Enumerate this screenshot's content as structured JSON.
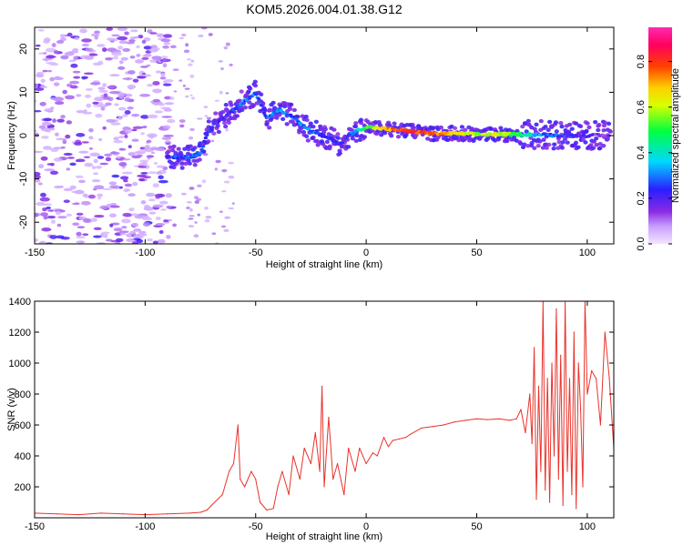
{
  "title": "KOM5.2026.004.01.38.G12",
  "colors": {
    "snr_line": "#e8332b",
    "axis": "#000000",
    "background": "#ffffff"
  },
  "chart_data": [
    {
      "type": "heatmap",
      "name": "spectrogram",
      "xlabel": "Height of straight line (km)",
      "ylabel": "Frequency (Hz)",
      "xlim": [
        -150,
        112
      ],
      "ylim": [
        -25,
        25
      ],
      "xticks": [
        -150,
        -100,
        -50,
        0,
        50,
        100
      ],
      "yticks": [
        -20,
        -10,
        0,
        10,
        20
      ],
      "colorbar": {
        "label": "Normalized spectral amplitude",
        "range": [
          0,
          0.95
        ],
        "ticks": [
          0.0,
          0.2,
          0.4,
          0.6,
          0.8
        ],
        "tick_labels": [
          "0.0",
          "0.2",
          "0.4",
          "0.6",
          "0.8"
        ],
        "colormap": "rainbow (white/lavender low → purple → blue → cyan → green → yellow → orange → red → magenta high)"
      },
      "ridge": {
        "description": "main spectral trace (frequency vs height)",
        "x": [
          -90,
          -80,
          -75,
          -72,
          -70,
          -65,
          -60,
          -55,
          -52,
          -50,
          -45,
          -40,
          -35,
          -30,
          -25,
          -20,
          -15,
          -12,
          -10,
          -8,
          -5,
          0,
          10,
          20,
          30,
          40,
          50,
          60,
          70,
          80,
          90,
          100,
          110
        ],
        "y": [
          -5,
          -5,
          -4,
          0,
          2,
          4,
          6,
          8,
          9,
          10,
          4,
          6,
          5,
          3,
          1,
          0,
          -1,
          -2,
          -1,
          0,
          1,
          2,
          1.5,
          1,
          0.5,
          0.5,
          0.3,
          0.3,
          0.3,
          0.2,
          0,
          0,
          0
        ],
        "amplitude": [
          0.25,
          0.3,
          0.3,
          0.25,
          0.25,
          0.2,
          0.25,
          0.3,
          0.3,
          0.3,
          0.25,
          0.35,
          0.3,
          0.3,
          0.3,
          0.25,
          0.25,
          0.2,
          0.2,
          0.25,
          0.35,
          0.55,
          0.75,
          0.85,
          0.8,
          0.7,
          0.6,
          0.65,
          0.5,
          0.3,
          0.25,
          0.2,
          0.15
        ]
      }
    },
    {
      "type": "line",
      "name": "snr",
      "xlabel": "Height of straight line (km)",
      "ylabel": "SNR (v/v)",
      "xlim": [
        -150,
        112
      ],
      "ylim": [
        0,
        1400
      ],
      "xticks": [
        -150,
        -100,
        -50,
        0,
        50,
        100
      ],
      "yticks": [
        200,
        400,
        600,
        800,
        1000,
        1200,
        1400
      ],
      "series": [
        {
          "name": "SNR",
          "x": [
            -150,
            -140,
            -130,
            -120,
            -110,
            -100,
            -90,
            -80,
            -75,
            -72,
            -70,
            -65,
            -62,
            -60,
            -58,
            -57,
            -55,
            -52,
            -50,
            -48,
            -45,
            -42,
            -40,
            -38,
            -35,
            -33,
            -30,
            -28,
            -25,
            -23,
            -21,
            -20,
            -19,
            -17,
            -15,
            -13,
            -10,
            -8,
            -5,
            -3,
            0,
            3,
            5,
            8,
            10,
            12,
            15,
            18,
            20,
            25,
            30,
            35,
            40,
            45,
            50,
            55,
            60,
            65,
            68,
            70,
            72,
            74,
            75,
            76,
            77,
            78,
            79,
            80,
            81,
            82,
            83,
            84,
            85,
            86,
            87,
            88,
            89,
            90,
            91,
            92,
            93,
            94,
            95,
            96,
            97,
            98,
            99,
            100,
            102,
            104,
            106,
            108,
            110,
            112
          ],
          "y": [
            30,
            25,
            20,
            30,
            25,
            20,
            25,
            30,
            35,
            50,
            80,
            150,
            300,
            350,
            600,
            250,
            200,
            300,
            250,
            100,
            50,
            60,
            200,
            300,
            150,
            400,
            250,
            450,
            350,
            550,
            300,
            850,
            200,
            650,
            250,
            350,
            150,
            450,
            300,
            450,
            350,
            420,
            400,
            520,
            460,
            500,
            510,
            520,
            540,
            580,
            590,
            600,
            620,
            630,
            640,
            635,
            640,
            630,
            640,
            700,
            550,
            800,
            480,
            1100,
            120,
            850,
            300,
            1400,
            180,
            900,
            100,
            1000,
            400,
            1350,
            250,
            1050,
            80,
            1400,
            300,
            900,
            150,
            1200,
            60,
            1000,
            700,
            200,
            1400,
            800,
            950,
            900,
            600,
            1200,
            900,
            450
          ]
        }
      ]
    }
  ]
}
